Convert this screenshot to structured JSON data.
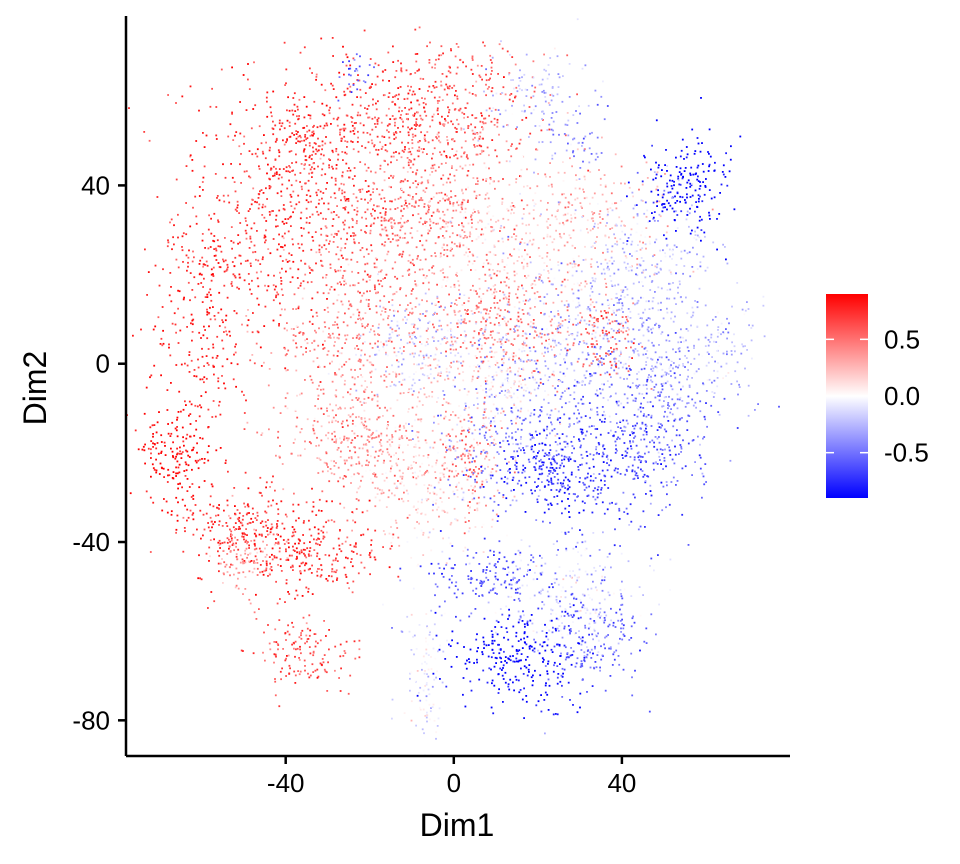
{
  "chart_data": {
    "type": "scatter",
    "title": "",
    "xlabel": "Dim1",
    "ylabel": "Dim2",
    "xlim": [
      -78,
      80
    ],
    "ylim": [
      -88,
      78
    ],
    "x_ticks": [
      {
        "value": -40,
        "label": "-40"
      },
      {
        "value": 0,
        "label": "0"
      },
      {
        "value": 40,
        "label": "40"
      }
    ],
    "y_ticks": [
      {
        "value": 40,
        "label": "40"
      },
      {
        "value": 0,
        "label": "0"
      },
      {
        "value": -40,
        "label": "-40"
      },
      {
        "value": -80,
        "label": "-80"
      }
    ],
    "grid": false,
    "color_scale": {
      "type": "diverging",
      "min": -0.9,
      "max": 0.9,
      "low_color": "#0000ff",
      "mid_color": "#ffffff",
      "high_color": "#ff0000",
      "legend_position": "right",
      "ticks": [
        {
          "value": 0.5,
          "label": "0.5"
        },
        {
          "value": 0.0,
          "label": "0.0"
        },
        {
          "value": -0.5,
          "label": "-0.5"
        }
      ]
    },
    "clusters": [
      {
        "cx": -43,
        "cy": 34,
        "sx": 12,
        "sy": 16,
        "value": 0.72,
        "n": 550
      },
      {
        "cx": -60,
        "cy": 10,
        "sx": 6,
        "sy": 12,
        "value": 0.78,
        "n": 220
      },
      {
        "cx": -34,
        "cy": 50,
        "sx": 6,
        "sy": 6,
        "value": 0.72,
        "n": 160
      },
      {
        "cx": -14,
        "cy": 56,
        "sx": 8,
        "sy": 8,
        "value": 0.68,
        "n": 240
      },
      {
        "cx": 3,
        "cy": 58,
        "sx": 10,
        "sy": 8,
        "value": 0.6,
        "n": 260
      },
      {
        "cx": 20,
        "cy": 60,
        "sx": 7,
        "sy": 6,
        "value": -0.25,
        "n": 120
      },
      {
        "cx": -15,
        "cy": 32,
        "sx": 11,
        "sy": 10,
        "value": 0.55,
        "n": 420
      },
      {
        "cx": -2,
        "cy": 38,
        "sx": 8,
        "sy": 10,
        "value": 0.4,
        "n": 240
      },
      {
        "cx": 12,
        "cy": 26,
        "sx": 10,
        "sy": 10,
        "value": 0.15,
        "n": 260
      },
      {
        "cx": 32,
        "cy": 32,
        "sx": 9,
        "sy": 8,
        "value": 0.25,
        "n": 240
      },
      {
        "cx": 45,
        "cy": 22,
        "sx": 8,
        "sy": 9,
        "value": -0.25,
        "n": 200
      },
      {
        "cx": 55,
        "cy": 40,
        "sx": 5,
        "sy": 6,
        "value": -0.92,
        "n": 190
      },
      {
        "cx": 30,
        "cy": 50,
        "sx": 3,
        "sy": 3,
        "value": -0.45,
        "n": 35
      },
      {
        "cx": -25,
        "cy": 7,
        "sx": 10,
        "sy": 10,
        "value": 0.45,
        "n": 380
      },
      {
        "cx": 10,
        "cy": 10,
        "sx": 9,
        "sy": 7,
        "value": 0.48,
        "n": 320
      },
      {
        "cx": -8,
        "cy": 5,
        "sx": 7,
        "sy": 6,
        "value": -0.2,
        "n": 180
      },
      {
        "cx": 28,
        "cy": 5,
        "sx": 10,
        "sy": 9,
        "value": -0.3,
        "n": 280
      },
      {
        "cx": 36,
        "cy": 6,
        "sx": 4,
        "sy": 4,
        "value": 0.55,
        "n": 110
      },
      {
        "cx": 54,
        "cy": 2,
        "sx": 10,
        "sy": 6,
        "value": -0.3,
        "n": 220
      },
      {
        "cx": -22,
        "cy": -18,
        "sx": 9,
        "sy": 6,
        "value": 0.4,
        "n": 260
      },
      {
        "cx": -6,
        "cy": -28,
        "sx": 8,
        "sy": 8,
        "value": 0.15,
        "n": 230
      },
      {
        "cx": 3,
        "cy": -22,
        "sx": 4,
        "sy": 6,
        "value": 0.5,
        "n": 110
      },
      {
        "cx": 14,
        "cy": -16,
        "sx": 10,
        "sy": 8,
        "value": -0.45,
        "n": 280
      },
      {
        "cx": 22,
        "cy": -24,
        "sx": 7,
        "sy": 5,
        "value": -0.78,
        "n": 200
      },
      {
        "cx": 38,
        "cy": -18,
        "sx": 9,
        "sy": 10,
        "value": -0.65,
        "n": 300
      },
      {
        "cx": 48,
        "cy": -14,
        "sx": 7,
        "sy": 8,
        "value": -0.5,
        "n": 180
      },
      {
        "cx": 12,
        "cy": -4,
        "sx": 6,
        "sy": 5,
        "value": 0.05,
        "n": 140
      },
      {
        "cx": -66,
        "cy": -20,
        "sx": 4,
        "sy": 6,
        "value": 0.88,
        "n": 170
      },
      {
        "cx": -50,
        "cy": -36,
        "sx": 8,
        "sy": 5,
        "value": 0.72,
        "n": 230
      },
      {
        "cx": -35,
        "cy": -42,
        "sx": 9,
        "sy": 5,
        "value": 0.72,
        "n": 260
      },
      {
        "cx": -50,
        "cy": -44,
        "sx": 4,
        "sy": 4,
        "value": 0.35,
        "n": 80
      },
      {
        "cx": -36,
        "cy": -65,
        "sx": 6,
        "sy": 4,
        "value": 0.62,
        "n": 140
      },
      {
        "cx": -7,
        "cy": -70,
        "sx": 2.5,
        "sy": 9,
        "value": -0.1,
        "n": 110
      },
      {
        "cx": 8,
        "cy": -48,
        "sx": 9,
        "sy": 4,
        "value": -0.6,
        "n": 170
      },
      {
        "cx": 27,
        "cy": -52,
        "sx": 9,
        "sy": 6,
        "value": -0.1,
        "n": 210
      },
      {
        "cx": 16,
        "cy": -66,
        "sx": 8,
        "sy": 5,
        "value": -0.92,
        "n": 260
      },
      {
        "cx": 32,
        "cy": -62,
        "sx": 7,
        "sy": 6,
        "value": -0.55,
        "n": 180
      },
      {
        "cx": -24,
        "cy": 65,
        "sx": 2,
        "sy": 2,
        "value": -0.6,
        "n": 25
      },
      {
        "cx": 40,
        "cy": 12,
        "sx": 16,
        "sy": 14,
        "value": -0.2,
        "n": 200
      },
      {
        "cx": -10,
        "cy": -10,
        "sx": 14,
        "sy": 10,
        "value": 0.2,
        "n": 220
      }
    ]
  }
}
